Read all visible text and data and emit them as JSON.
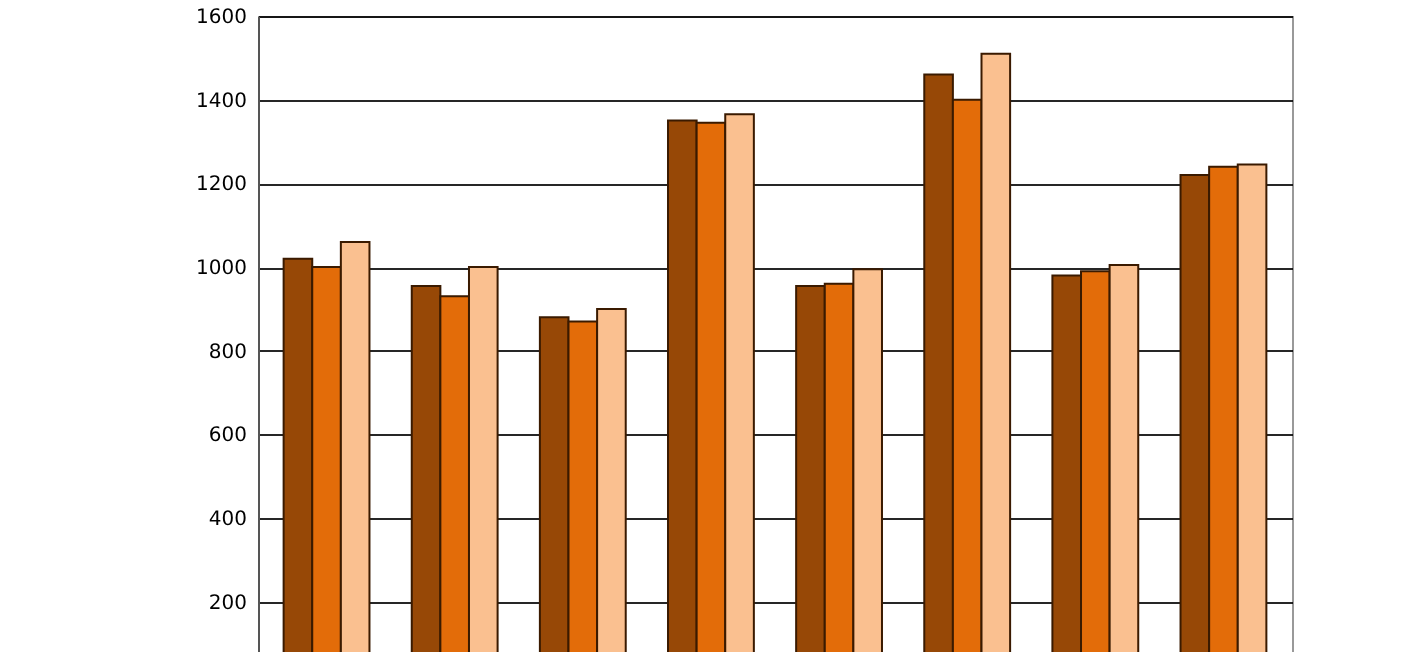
{
  "chart_data": {
    "type": "bar",
    "categories": [
      null,
      null,
      null,
      null,
      null,
      null,
      null,
      null
    ],
    "series": [
      {
        "color": "#974806",
        "values": [
          1020,
          955,
          880,
          1350,
          955,
          1460,
          980,
          1220
        ]
      },
      {
        "color": "#e36c09",
        "values": [
          1000,
          930,
          870,
          1345,
          960,
          1400,
          990,
          1240
        ]
      },
      {
        "color": "#fac090",
        "values": [
          1060,
          1000,
          900,
          1365,
          995,
          1510,
          1005,
          1245
        ]
      }
    ],
    "ylim": [
      80,
      1600
    ],
    "yticks": [
      200,
      400,
      600,
      800,
      1000,
      1200,
      1400,
      1600
    ],
    "grid": "y",
    "tick_labels": "y"
  }
}
